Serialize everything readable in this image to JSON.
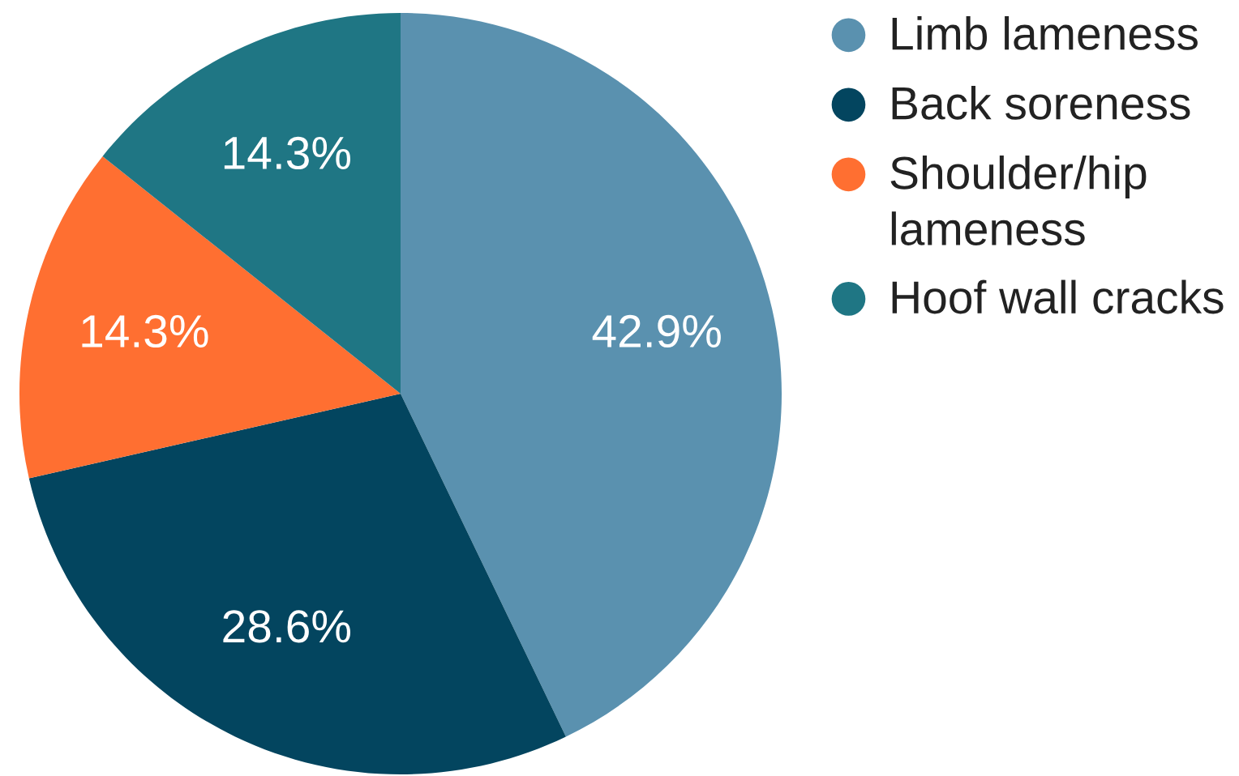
{
  "chart_data": {
    "type": "pie",
    "categories": [
      "Limb lameness",
      "Back soreness",
      "Shoulder/hip lameness",
      "Hoof wall cracks"
    ],
    "values": [
      42.9,
      28.6,
      14.3,
      14.3
    ],
    "colors": [
      "#5a91af",
      "#03455f",
      "#ff6f31",
      "#1f7684"
    ],
    "value_labels": [
      "42.9%",
      "28.6%",
      "14.3%",
      "14.3%"
    ],
    "legend": "right"
  }
}
